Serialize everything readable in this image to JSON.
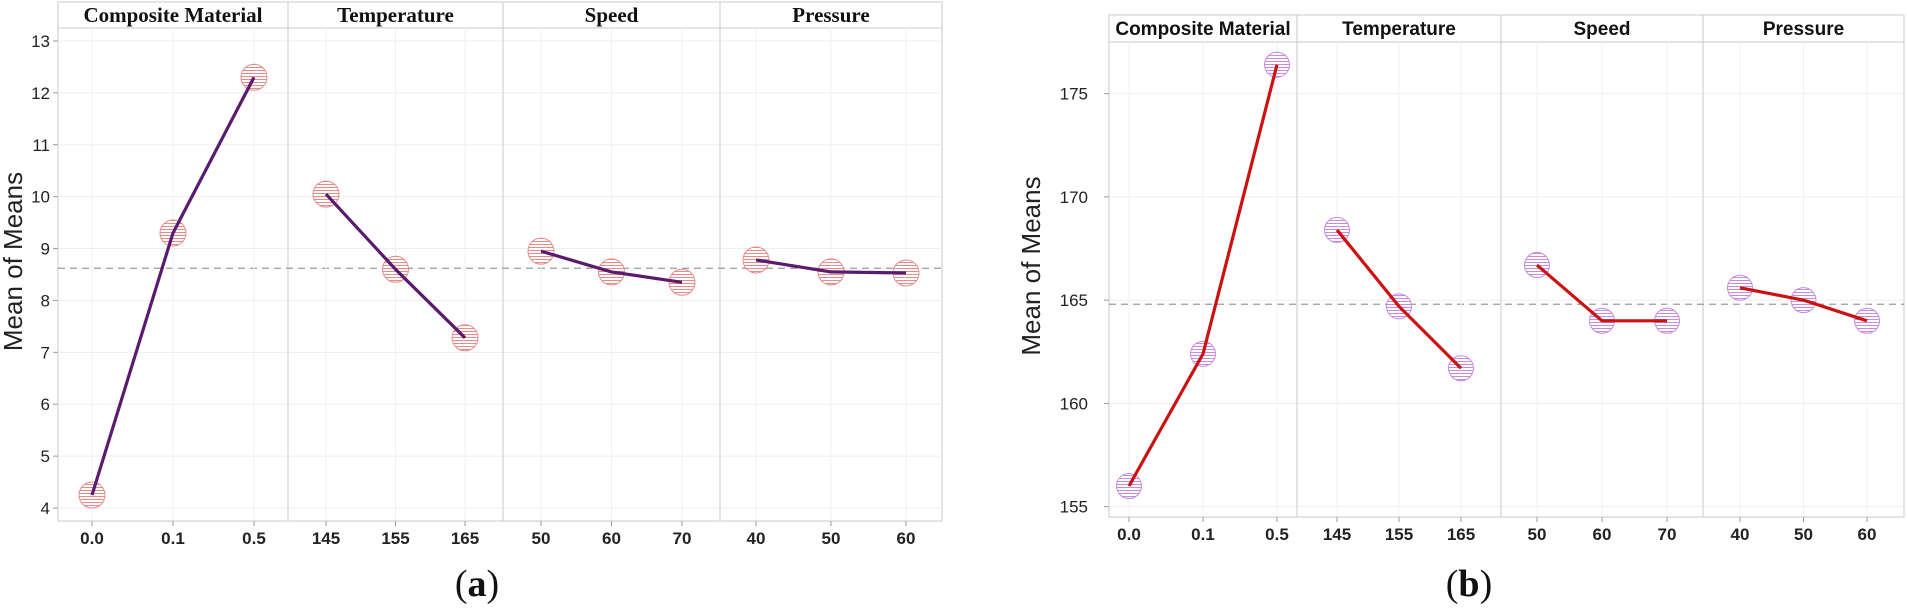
{
  "chart_data": [
    {
      "id": "a",
      "type": "line",
      "panel_label": "a",
      "ylabel": "Mean of Means",
      "ylim": [
        3.75,
        13.25
      ],
      "yticks": [
        4,
        5,
        6,
        7,
        8,
        9,
        10,
        11,
        12,
        13
      ],
      "reference_mean": 8.62,
      "line_color": "#5a1a6e",
      "marker_color": "#e88a8a",
      "facets": [
        {
          "title": "Composite Material",
          "x": [
            "0.0",
            "0.1",
            "0.5"
          ],
          "values": [
            4.25,
            9.3,
            12.3
          ]
        },
        {
          "title": "Temperature",
          "x": [
            "145",
            "155",
            "165"
          ],
          "values": [
            10.05,
            8.6,
            7.28
          ]
        },
        {
          "title": "Speed",
          "x": [
            "50",
            "60",
            "70"
          ],
          "values": [
            8.95,
            8.55,
            8.35
          ]
        },
        {
          "title": "Pressure",
          "x": [
            "40",
            "50",
            "60"
          ],
          "values": [
            8.78,
            8.55,
            8.53
          ]
        }
      ]
    },
    {
      "id": "b",
      "type": "line",
      "panel_label": "b",
      "ylabel": "Mean of Means",
      "ylim": [
        154.5,
        177.5
      ],
      "yticks": [
        155,
        160,
        165,
        170,
        175
      ],
      "reference_mean": 164.8,
      "line_color": "#cc1111",
      "marker_color": "#c58be0",
      "facets": [
        {
          "title": "Composite Material",
          "x": [
            "0.0",
            "0.1",
            "0.5"
          ],
          "values": [
            156.0,
            162.4,
            176.4
          ]
        },
        {
          "title": "Temperature",
          "x": [
            "145",
            "155",
            "165"
          ],
          "values": [
            168.4,
            164.7,
            161.7
          ]
        },
        {
          "title": "Speed",
          "x": [
            "50",
            "60",
            "70"
          ],
          "values": [
            166.7,
            164.0,
            164.0
          ]
        },
        {
          "title": "Pressure",
          "x": [
            "40",
            "50",
            "60"
          ],
          "values": [
            165.6,
            165.0,
            164.0
          ]
        }
      ]
    }
  ]
}
